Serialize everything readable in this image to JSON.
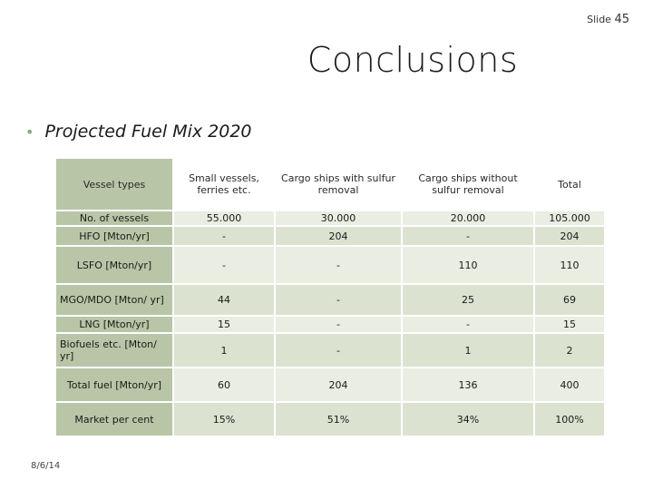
{
  "slide_label": "Slide",
  "slide_number": "45",
  "title": "Conclusions",
  "bullet": "Projected Fuel Mix 2020",
  "date": "8/6/14",
  "table": {
    "headers": [
      "Vessel types",
      "Small vessels, ferries etc.",
      "Cargo ships with sulfur removal",
      "Cargo ships without sulfur removal",
      "Total"
    ],
    "rows": [
      {
        "label": "No. of vessels",
        "values": [
          "55.000",
          "30.000",
          "20.000",
          "105.000"
        ]
      },
      {
        "label": "HFO [Mton/yr]",
        "values": [
          "-",
          "204",
          "-",
          "204"
        ]
      },
      {
        "label": "LSFO [Mton/yr]",
        "values": [
          "-",
          "-",
          "110",
          "110"
        ]
      },
      {
        "label": "MGO/MDO [Mton/ yr]",
        "values": [
          "44",
          "-",
          "25",
          "69"
        ]
      },
      {
        "label": "LNG [Mton/yr]",
        "values": [
          "15",
          "-",
          "-",
          "15"
        ]
      },
      {
        "label": "Biofuels etc. [Mton/ yr]",
        "values": [
          "1",
          "-",
          "1",
          "2"
        ]
      },
      {
        "label": "Total fuel [Mton/yr]",
        "values": [
          "60",
          "204",
          "136",
          "400"
        ]
      },
      {
        "label": "Market per cent",
        "values": [
          "15%",
          "51%",
          "34%",
          "100%"
        ]
      }
    ]
  }
}
